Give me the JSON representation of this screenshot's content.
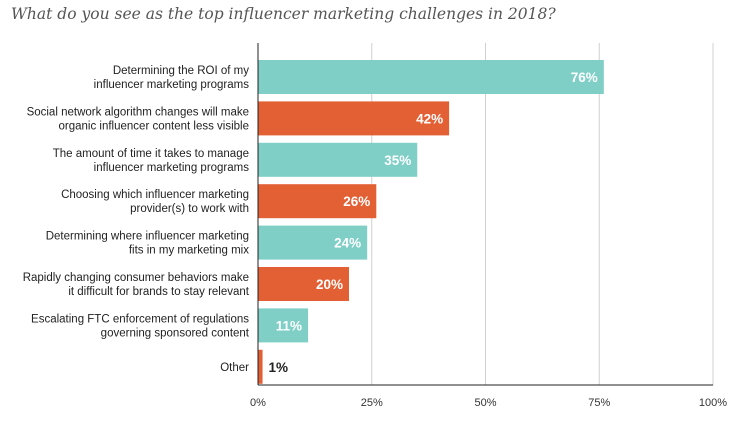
{
  "title": "What do you see as the top influencer marketing challenges in 2018?",
  "colors": {
    "teal": "#7fcfc7",
    "orange": "#e35f34",
    "axis": "#222222",
    "grid": "#d0d0d0"
  },
  "chart_data": {
    "type": "bar",
    "orientation": "horizontal",
    "title": "What do you see as the top influencer marketing challenges in 2018?",
    "categories": [
      [
        "Determining the ROI of my",
        "influencer marketing programs"
      ],
      [
        "Social network algorithm changes will make",
        "organic influencer content less visible"
      ],
      [
        "The amount of time it takes to manage",
        "influencer marketing programs"
      ],
      [
        "Choosing which influencer marketing",
        "provider(s) to work with"
      ],
      [
        "Determining where influencer marketing",
        "fits in my marketing mix"
      ],
      [
        "Rapidly changing consumer behaviors make",
        "it difficult for brands to stay relevant"
      ],
      [
        "Escalating FTC enforcement of regulations",
        "governing sponsored content"
      ],
      [
        "Other"
      ]
    ],
    "values": [
      76,
      42,
      35,
      26,
      24,
      20,
      11,
      1
    ],
    "value_labels": [
      "76%",
      "42%",
      "35%",
      "26%",
      "24%",
      "20%",
      "11%",
      "1%"
    ],
    "bar_colors": [
      "#7fcfc7",
      "#e35f34",
      "#7fcfc7",
      "#e35f34",
      "#7fcfc7",
      "#e35f34",
      "#7fcfc7",
      "#e35f34"
    ],
    "xlim": [
      0,
      100
    ],
    "xticks": [
      0,
      25,
      50,
      75,
      100
    ],
    "xtick_labels": [
      "0%",
      "25%",
      "50%",
      "75%",
      "100%"
    ],
    "grid": true,
    "legend": false
  }
}
